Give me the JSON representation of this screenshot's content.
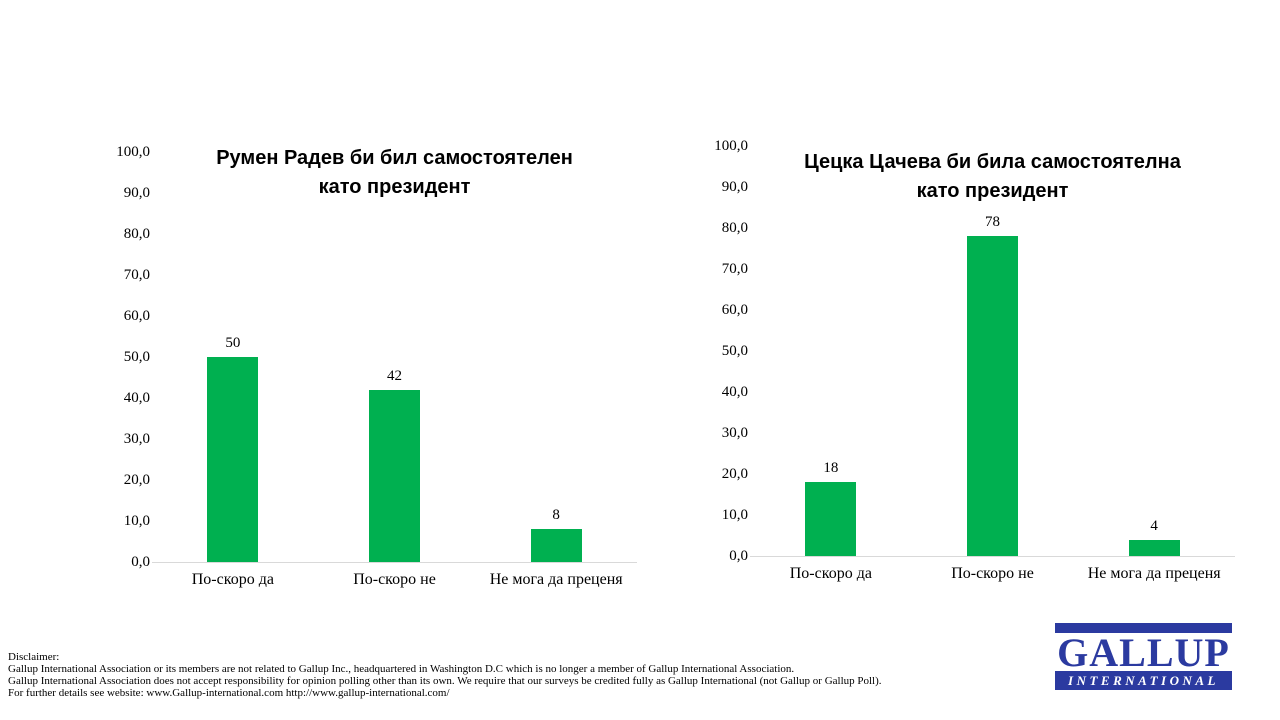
{
  "chart_data": [
    {
      "type": "bar",
      "title": "Румен Радев би бил самостоятелен като президент",
      "title_lines": [
        "Румен Радев би бил самостоятелен",
        "като президент"
      ],
      "categories": [
        "По-скоро да",
        "По-скоро не",
        "Не мога да преценя"
      ],
      "values": [
        50,
        42,
        8
      ],
      "ylim": [
        0,
        100
      ],
      "y_tick_labels": [
        "100,0",
        "90,0",
        "80,0",
        "70,0",
        "60,0",
        "50,0",
        "40,0",
        "30,0",
        "20,0",
        "10,0",
        "0,0"
      ],
      "bar_color": "#00B050",
      "axis_line_color": "#D9D9D9",
      "grid": false,
      "legend_position": "none",
      "value_labels_shown": true
    },
    {
      "type": "bar",
      "title": "Цецка Цачева би била самостоятелна като президент",
      "title_lines": [
        "Цецка Цачева би била самостоятелна",
        "като президент"
      ],
      "categories": [
        "По-скоро да",
        "По-скоро не",
        "Не мога да преценя"
      ],
      "values": [
        18,
        78,
        4
      ],
      "ylim": [
        0,
        100
      ],
      "y_tick_labels": [
        "100,0",
        "90,0",
        "80,0",
        "70,0",
        "60,0",
        "50,0",
        "40,0",
        "30,0",
        "20,0",
        "10,0",
        "0,0"
      ],
      "bar_color": "#00B050",
      "axis_line_color": "#D9D9D9",
      "grid": false,
      "legend_position": "none",
      "value_labels_shown": true
    }
  ],
  "footer": {
    "disclaimer_label": "Disclaimer:",
    "lines": [
      "Gallup International Association or its members are not related to Gallup Inc., headquartered in Washington D.C which is no longer a member of Gallup International Association.",
      "Gallup International Association does not accept responsibility for opinion polling other than its own. We require that our surveys be credited fully as Gallup International (not Gallup or Gallup Poll).",
      "For further details see website: www.Gallup-international.com http://www.gallup-international.com/"
    ]
  },
  "logo": {
    "line1": "GALLUP",
    "line2": "INTERNATIONAL",
    "color": "#2B3AA0"
  }
}
